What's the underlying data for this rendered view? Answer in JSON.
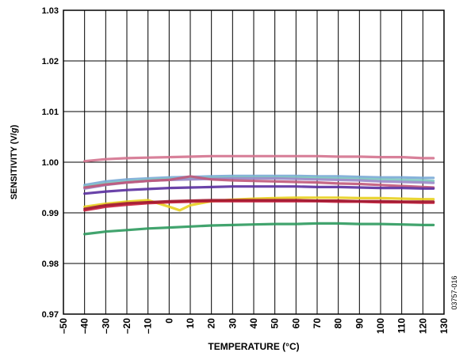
{
  "chart_data": {
    "type": "line",
    "title": "",
    "xlabel": "TEMPERATURE (°C)",
    "ylabel_prefix": "SENSITIVITY (V/",
    "ylabel_italic": "g",
    "ylabel_suffix": ")",
    "xlim": [
      -50,
      130
    ],
    "ylim": [
      0.97,
      1.03
    ],
    "x_ticks": [
      -50,
      -40,
      -30,
      -20,
      -10,
      0,
      10,
      20,
      30,
      40,
      50,
      60,
      70,
      80,
      90,
      100,
      110,
      120,
      130
    ],
    "x_tick_labels": [
      "–50",
      "–40",
      "–30",
      "–20",
      "–10",
      "0",
      "10",
      "20",
      "30",
      "40",
      "50",
      "60",
      "70",
      "80",
      "90",
      "100",
      "110",
      "120",
      "130"
    ],
    "y_ticks": [
      0.97,
      0.98,
      0.99,
      1.0,
      1.01,
      1.02,
      1.03
    ],
    "y_tick_labels": [
      "0.97",
      "0.98",
      "0.99",
      "1.00",
      "1.01",
      "1.02",
      "1.03"
    ],
    "grid": true,
    "legend": "none",
    "series": [
      {
        "color": "#d4738f",
        "x": [
          -40,
          -30,
          -20,
          -10,
          0,
          10,
          20,
          30,
          40,
          50,
          60,
          70,
          80,
          90,
          100,
          110,
          120,
          125
        ],
        "y": [
          1.0002,
          1.0006,
          1.0008,
          1.0009,
          1.001,
          1.0011,
          1.0012,
          1.0012,
          1.0012,
          1.0012,
          1.0012,
          1.0012,
          1.0011,
          1.0011,
          1.001,
          1.001,
          1.0008,
          1.0008
        ]
      },
      {
        "color": "#7aaad6",
        "x": [
          -40,
          -30,
          -20,
          -10,
          0,
          10,
          20,
          30,
          40,
          50,
          60,
          70,
          80,
          90,
          100,
          110,
          120,
          125
        ],
        "y": [
          0.9955,
          0.9962,
          0.9966,
          0.9968,
          0.997,
          0.9971,
          0.9972,
          0.9973,
          0.9973,
          0.9973,
          0.9973,
          0.9972,
          0.9972,
          0.9971,
          0.997,
          0.997,
          0.9969,
          0.9969
        ]
      },
      {
        "color": "#7fc9bf",
        "x": [
          -40,
          -30,
          -20,
          -10,
          0,
          10,
          20,
          30,
          40,
          50,
          60,
          70,
          80,
          90,
          100,
          110,
          120,
          125
        ],
        "y": [
          0.9952,
          0.9958,
          0.9962,
          0.9965,
          0.9967,
          0.9968,
          0.9969,
          0.997,
          0.997,
          0.997,
          0.997,
          0.9969,
          0.9968,
          0.9967,
          0.9966,
          0.9965,
          0.9964,
          0.9963
        ]
      },
      {
        "color": "#9b8ac9",
        "x": [
          -40,
          -30,
          -20,
          -10,
          0,
          10,
          20,
          30,
          40,
          50,
          60,
          70,
          80,
          90,
          100,
          110,
          120,
          125
        ],
        "y": [
          0.9948,
          0.9955,
          0.996,
          0.9963,
          0.9965,
          0.9966,
          0.9967,
          0.9968,
          0.9968,
          0.9968,
          0.9967,
          0.9966,
          0.9965,
          0.9964,
          0.9962,
          0.9961,
          0.996,
          0.9959
        ]
      },
      {
        "color": "#c0587a",
        "x": [
          -40,
          -30,
          -20,
          -10,
          0,
          10,
          20,
          30,
          40,
          50,
          60,
          70,
          80,
          90,
          100,
          110,
          120,
          125
        ],
        "y": [
          0.995,
          0.9956,
          0.996,
          0.9963,
          0.9965,
          0.9972,
          0.9966,
          0.9964,
          0.9963,
          0.9962,
          0.9961,
          0.996,
          0.9958,
          0.9957,
          0.9955,
          0.9953,
          0.9951,
          0.995
        ]
      },
      {
        "color": "#5a2fa0",
        "x": [
          -40,
          -30,
          -20,
          -10,
          0,
          10,
          20,
          30,
          40,
          50,
          60,
          70,
          80,
          90,
          100,
          110,
          120,
          125
        ],
        "y": [
          0.9938,
          0.9942,
          0.9945,
          0.9947,
          0.9949,
          0.995,
          0.9951,
          0.9952,
          0.9952,
          0.9952,
          0.9952,
          0.9951,
          0.9951,
          0.995,
          0.9949,
          0.9949,
          0.9948,
          0.9948
        ]
      },
      {
        "color": "#e8d020",
        "x": [
          -40,
          -30,
          -20,
          -10,
          0,
          5,
          10,
          20,
          30,
          40,
          50,
          60,
          70,
          80,
          90,
          100,
          110,
          120,
          125
        ],
        "y": [
          0.9912,
          0.9918,
          0.9922,
          0.9925,
          0.9912,
          0.9905,
          0.9915,
          0.9923,
          0.9926,
          0.9928,
          0.9929,
          0.993,
          0.993,
          0.993,
          0.9929,
          0.9929,
          0.9928,
          0.9927,
          0.9927
        ]
      },
      {
        "color": "#c81e3c",
        "x": [
          -40,
          -30,
          -20,
          -10,
          0,
          10,
          20,
          30,
          40,
          50,
          60,
          70,
          80,
          90,
          100,
          110,
          120,
          125
        ],
        "y": [
          0.9905,
          0.9912,
          0.9916,
          0.9919,
          0.9921,
          0.9922,
          0.9923,
          0.9923,
          0.9923,
          0.9923,
          0.9923,
          0.9923,
          0.9922,
          0.9922,
          0.9921,
          0.9921,
          0.992,
          0.992
        ]
      },
      {
        "color": "#a01830",
        "x": [
          -40,
          -30,
          -20,
          -10,
          0,
          10,
          20,
          30,
          40,
          50,
          60,
          70,
          80,
          90,
          100,
          110,
          120,
          125
        ],
        "y": [
          0.9908,
          0.9915,
          0.9919,
          0.9921,
          0.9923,
          0.9924,
          0.9925,
          0.9925,
          0.9925,
          0.9925,
          0.9925,
          0.9924,
          0.9924,
          0.9923,
          0.9923,
          0.9922,
          0.9922,
          0.9922
        ]
      },
      {
        "color": "#2e9a5e",
        "x": [
          -40,
          -30,
          -20,
          -10,
          0,
          10,
          20,
          30,
          40,
          50,
          60,
          70,
          80,
          90,
          100,
          110,
          120,
          125
        ],
        "y": [
          0.9858,
          0.9863,
          0.9866,
          0.9869,
          0.9871,
          0.9873,
          0.9875,
          0.9876,
          0.9877,
          0.9878,
          0.9878,
          0.9879,
          0.9879,
          0.9878,
          0.9878,
          0.9877,
          0.9876,
          0.9876
        ]
      }
    ]
  },
  "figure_id": "03757-016"
}
